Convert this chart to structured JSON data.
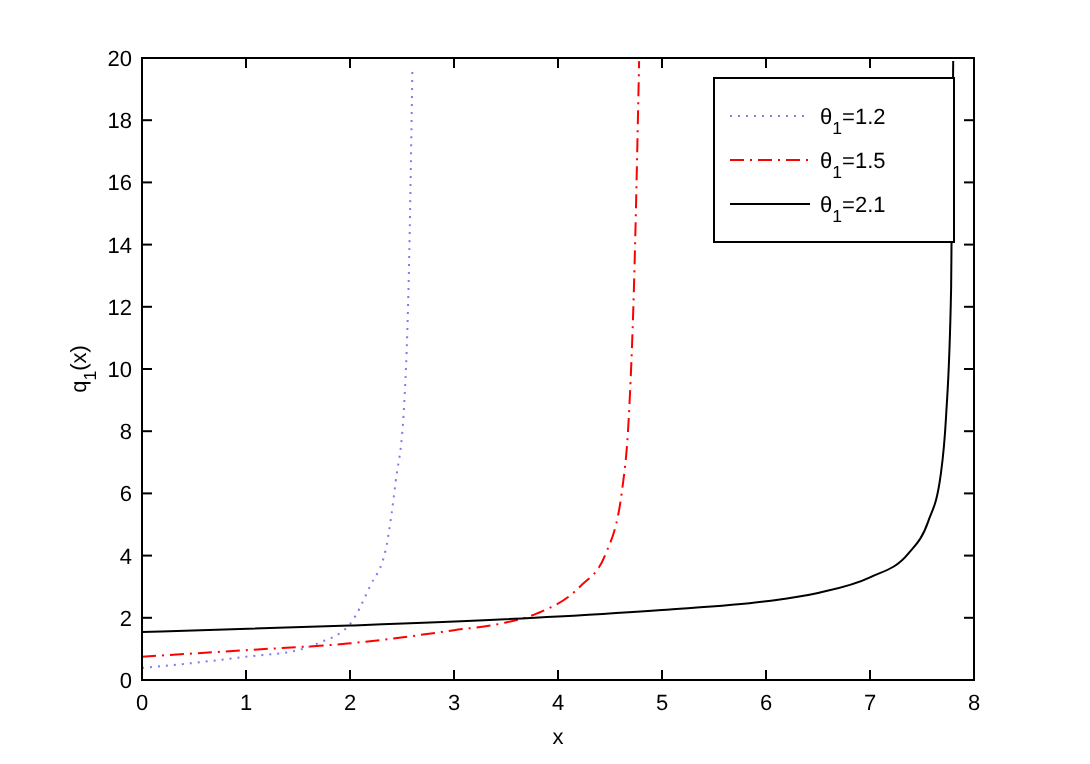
{
  "chart_data": {
    "type": "line",
    "xlabel": "x",
    "ylabel": "q$_{1}$(x)",
    "xlim": [
      0,
      8
    ],
    "ylim": [
      0,
      20
    ],
    "xticks": [
      0,
      1,
      2,
      3,
      4,
      5,
      6,
      7,
      8
    ],
    "yticks": [
      0,
      2,
      4,
      6,
      8,
      10,
      12,
      14,
      16,
      18,
      20
    ],
    "grid": false,
    "legend": "top right",
    "series": [
      {
        "name": "θ$_{1}$=1.2",
        "color": "#7b7bf0",
        "line_style": "dotted",
        "x": [
          0,
          0.5,
          1,
          1.5,
          1.69,
          2.0,
          2.19,
          2.35,
          2.44,
          2.52,
          2.57,
          2.6
        ],
        "values": [
          0.39,
          0.55,
          0.75,
          0.96,
          1.18,
          1.8,
          3.0,
          4.3,
          6.4,
          8.8,
          13.7,
          19.7
        ]
      },
      {
        "name": "θ$_{1}$=1.5",
        "color": "#ff0000",
        "line_style": "dashdot",
        "x": [
          0,
          1,
          2,
          3,
          3.5,
          3.8,
          4.21,
          4.46,
          4.62,
          4.68,
          4.73,
          4.78
        ],
        "values": [
          0.75,
          0.96,
          1.18,
          1.6,
          1.85,
          2.14,
          3.0,
          4.07,
          6.2,
          8.4,
          12.6,
          19.9
        ]
      },
      {
        "name": "θ$_{1}$=2.1",
        "color": "#000000",
        "line_style": "solid",
        "x": [
          0,
          2,
          4,
          5,
          6,
          6.5,
          7,
          7.37,
          7.56,
          7.68,
          7.73,
          7.78,
          7.8
        ],
        "values": [
          1.54,
          1.75,
          2.04,
          2.25,
          2.53,
          2.8,
          3.3,
          4.07,
          5.1,
          6.6,
          8.4,
          12.6,
          19.9
        ]
      }
    ]
  }
}
